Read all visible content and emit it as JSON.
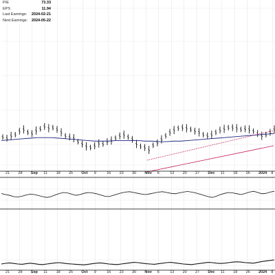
{
  "info_panel": [
    {
      "label": "P/E",
      "value": "73.33"
    },
    {
      "label": "EPS",
      "value": "11.94"
    },
    {
      "label": "Last Earnings:",
      "value": "2024-02-21"
    },
    {
      "label": "Next Earnings:",
      "value": "2024-05-22"
    }
  ],
  "x_axis": {
    "ticks": [
      {
        "label": "21",
        "bold": false
      },
      {
        "label": "28",
        "bold": false
      },
      {
        "label": "Sep",
        "bold": true
      },
      {
        "label": "11",
        "bold": false
      },
      {
        "label": "18",
        "bold": false
      },
      {
        "label": "25",
        "bold": false
      },
      {
        "label": "Oct",
        "bold": true
      },
      {
        "label": "9",
        "bold": false
      },
      {
        "label": "16",
        "bold": false
      },
      {
        "label": "23",
        "bold": false
      },
      {
        "label": "30",
        "bold": false
      },
      {
        "label": "Nov",
        "bold": true
      },
      {
        "label": "6",
        "bold": false
      },
      {
        "label": "13",
        "bold": false
      },
      {
        "label": "20",
        "bold": false
      },
      {
        "label": "27",
        "bold": false
      },
      {
        "label": "Dec",
        "bold": true
      },
      {
        "label": "11",
        "bold": false
      },
      {
        "label": "18",
        "bold": false
      },
      {
        "label": "26",
        "bold": false
      },
      {
        "label": "2024",
        "bold": true
      },
      {
        "label": "8",
        "bold": false
      }
    ]
  },
  "colors": {
    "price": "#111111",
    "moving_average": "#1a237e",
    "trendline": "#c2185b",
    "grid": "#e2e2e2",
    "axis": "#000000"
  },
  "chart_data": {
    "type": "line",
    "series": [
      {
        "values": [
          0.42,
          0.4,
          0.44,
          0.46,
          0.52,
          0.55,
          0.5,
          0.48,
          0.53,
          0.56,
          0.6,
          0.57,
          0.58,
          0.55,
          0.5,
          0.44,
          0.42,
          0.4,
          0.34,
          0.3,
          0.26,
          0.24,
          0.27,
          0.31,
          0.3,
          0.34,
          0.36,
          0.4,
          0.44,
          0.46,
          0.42,
          0.38,
          0.3,
          0.26,
          0.24,
          0.2,
          0.28,
          0.32,
          0.38,
          0.44,
          0.5,
          0.54,
          0.57,
          0.58,
          0.57,
          0.55,
          0.52,
          0.5,
          0.46,
          0.44,
          0.46,
          0.5,
          0.54,
          0.56,
          0.58,
          0.58,
          0.57,
          0.55,
          0.56,
          0.55,
          0.52,
          0.48,
          0.44,
          0.46,
          0.5,
          0.55
        ]
      },
      {
        "values": [
          0.36,
          0.37,
          0.38,
          0.39,
          0.4,
          0.41,
          0.41,
          0.41,
          0.4,
          0.39,
          0.38,
          0.37,
          0.36,
          0.35,
          0.35,
          0.35,
          0.36,
          0.36,
          0.36,
          0.36,
          0.35,
          0.35,
          0.34,
          0.34,
          0.35,
          0.35,
          0.36,
          0.37,
          0.38,
          0.39,
          0.4,
          0.41,
          0.42,
          0.43,
          0.44,
          0.45,
          0.46,
          0.47,
          0.48
        ]
      },
      {
        "values": [
          0.55,
          0.5,
          0.46,
          0.4,
          0.38,
          0.42,
          0.48,
          0.52,
          0.5,
          0.45,
          0.4,
          0.36,
          0.4,
          0.48,
          0.55,
          0.6,
          0.58,
          0.52,
          0.46,
          0.5,
          0.56,
          0.6,
          0.58,
          0.54,
          0.48,
          0.42,
          0.4,
          0.46,
          0.52,
          0.58,
          0.62,
          0.64,
          0.6,
          0.56,
          0.52,
          0.5,
          0.54,
          0.58,
          0.62,
          0.64,
          0.6,
          0.56,
          0.54,
          0.58,
          0.62,
          0.65,
          0.62,
          0.58,
          0.52,
          0.46,
          0.4,
          0.36,
          0.42,
          0.5,
          0.56,
          0.6,
          0.58,
          0.54,
          0.5,
          0.56,
          0.62,
          0.66,
          0.6,
          0.54,
          0.56,
          0.62,
          0.66
        ]
      },
      {
        "values": [
          0.4,
          0.45,
          0.48,
          0.44,
          0.4,
          0.38,
          0.42,
          0.46,
          0.42,
          0.38,
          0.36,
          0.4,
          0.44,
          0.48,
          0.5,
          0.46,
          0.42,
          0.4,
          0.38,
          0.36,
          0.34,
          0.38,
          0.42,
          0.46,
          0.48,
          0.44,
          0.4,
          0.38,
          0.36,
          0.4,
          0.44,
          0.48,
          0.52,
          0.5,
          0.46,
          0.42,
          0.4,
          0.38,
          0.42,
          0.46,
          0.5,
          0.52,
          0.48,
          0.44,
          0.4,
          0.38,
          0.36,
          0.4,
          0.44,
          0.48,
          0.52,
          0.5,
          0.46,
          0.44,
          0.46,
          0.5,
          0.54,
          0.56,
          0.54,
          0.5,
          0.48,
          0.46,
          0.52,
          0.58,
          0.62,
          0.66,
          0.7
        ]
      }
    ]
  }
}
